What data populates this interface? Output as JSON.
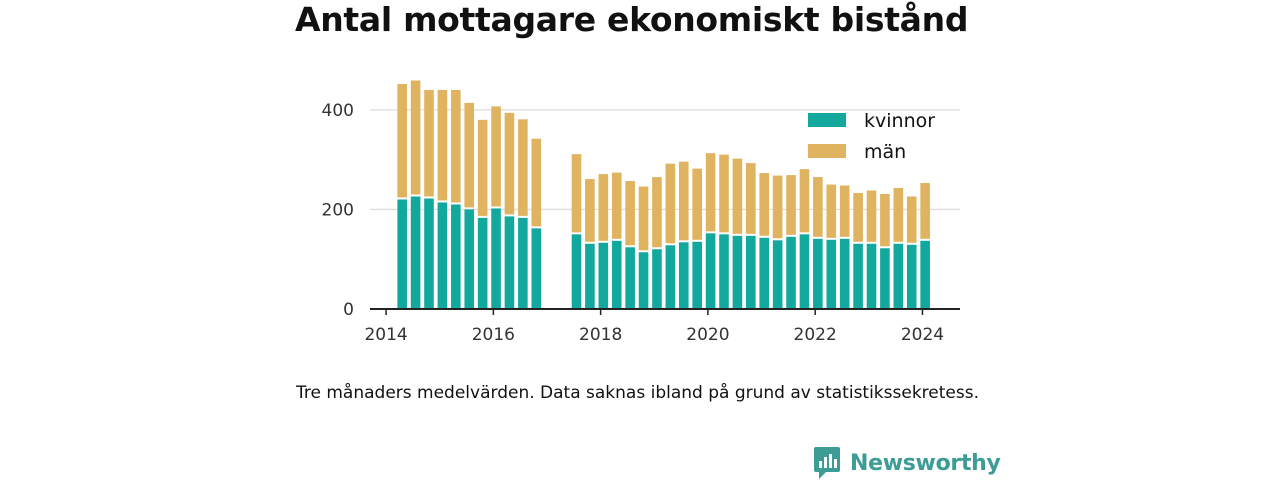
{
  "title": "Antal mottagare ekonomiskt bistånd",
  "note": "Tre månaders medelvärden. Data saknas ibland på grund av statistikssekretess.",
  "brand": {
    "name": "Newsworthy",
    "icon": "newsworthy-chart-bubble-icon",
    "color": "#3d9c95"
  },
  "colors": {
    "kvinnor": "#13a89e",
    "man": "#dfb35f",
    "axis": "#222222",
    "grid": "#dddddd"
  },
  "chart_data": {
    "type": "bar",
    "stacked": true,
    "title": "Antal mottagare ekonomiskt bistånd",
    "xlabel": "",
    "ylabel": "",
    "ylim": [
      0,
      460
    ],
    "yticks": [
      0,
      200,
      400
    ],
    "xlim": [
      2013.7,
      2024.7
    ],
    "xticks": [
      2014,
      2016,
      2018,
      2020,
      2022,
      2024
    ],
    "grid": true,
    "legend_position": "top-right",
    "x": [
      2014.3,
      2014.55,
      2014.8,
      2015.05,
      2015.3,
      2015.55,
      2015.8,
      2016.05,
      2016.3,
      2016.55,
      2016.8,
      2017.55,
      2017.8,
      2018.05,
      2018.3,
      2018.55,
      2018.8,
      2019.05,
      2019.3,
      2019.55,
      2019.8,
      2020.05,
      2020.3,
      2020.55,
      2020.8,
      2021.05,
      2021.3,
      2021.55,
      2021.8,
      2022.05,
      2022.3,
      2022.55,
      2022.8,
      2023.05,
      2023.3,
      2023.55,
      2023.8,
      2024.05
    ],
    "series": [
      {
        "name": "kvinnor",
        "values": [
          220,
          226,
          222,
          214,
          210,
          200,
          183,
          202,
          186,
          183,
          162,
          150,
          131,
          133,
          137,
          124,
          114,
          120,
          128,
          134,
          135,
          152,
          150,
          147,
          147,
          143,
          138,
          145,
          150,
          141,
          139,
          141,
          131,
          131,
          122,
          131,
          129,
          137
        ]
      },
      {
        "name": "män",
        "values": [
          232,
          233,
          218,
          226,
          230,
          214,
          197,
          205,
          208,
          198,
          180,
          161,
          130,
          138,
          137,
          133,
          132,
          145,
          164,
          162,
          147,
          161,
          160,
          155,
          146,
          130,
          130,
          124,
          131,
          124,
          111,
          107,
          102,
          107,
          109,
          112,
          97,
          116
        ]
      }
    ],
    "legend": [
      "kvinnor",
      "män"
    ]
  }
}
